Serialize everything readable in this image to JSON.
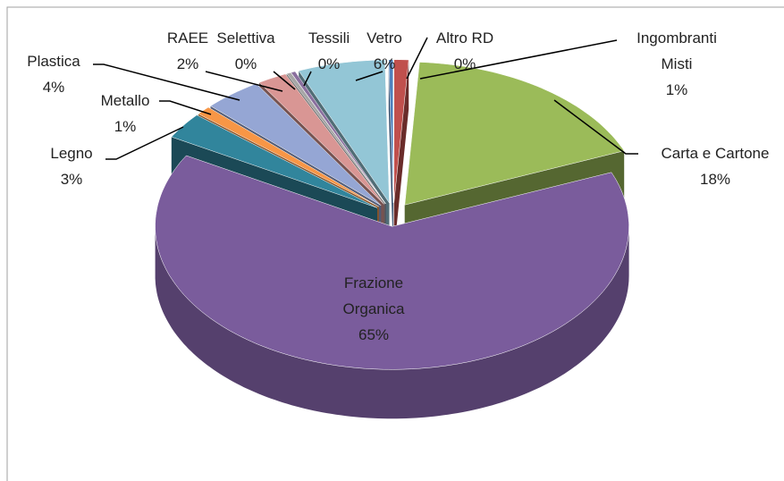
{
  "chart_data": {
    "type": "pie3d",
    "categories": [
      "Ingombranti Misti",
      "Carta e Cartone",
      "Frazione Organica",
      "Legno",
      "Metallo",
      "Plastica",
      "RAEE",
      "Selettiva",
      "Tessili",
      "Vetro",
      "Altro RD"
    ],
    "values": [
      1,
      18,
      65,
      3,
      1,
      4,
      2,
      0.3,
      0.3,
      6,
      0.3
    ],
    "value_labels": [
      "1%",
      "18%",
      "65%",
      "3%",
      "1%",
      "4%",
      "2%",
      "0%",
      "0%",
      "6%",
      "0%"
    ],
    "colors": [
      "#c0504d",
      "#9bbb59",
      "#7a5c9c",
      "#31859c",
      "#f79646",
      "#95a6d4",
      "#d99694",
      "#a6a6a6",
      "#8a6f9e",
      "#93c6d6",
      "#4f81bd"
    ]
  }
}
